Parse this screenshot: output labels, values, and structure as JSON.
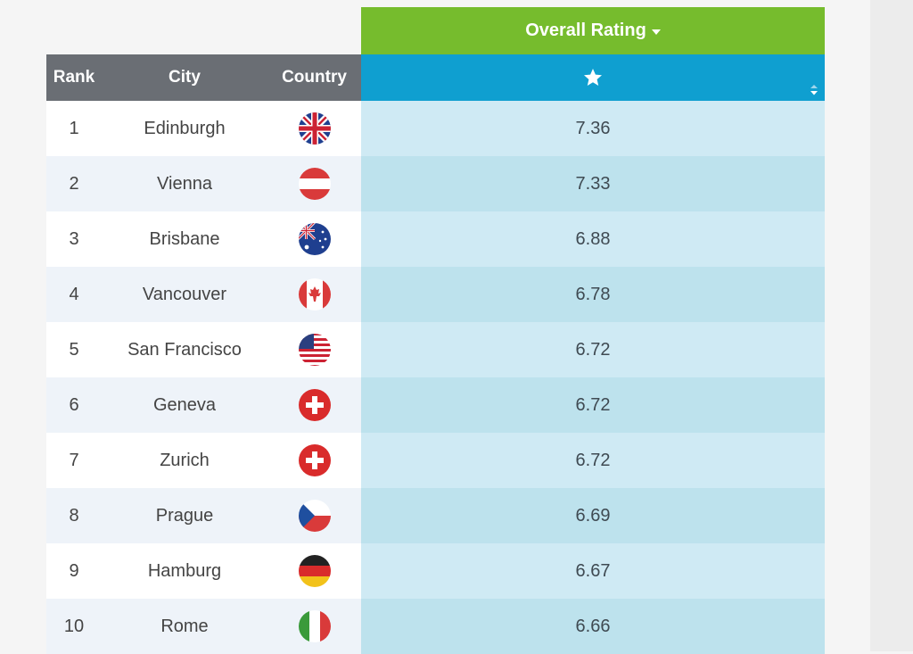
{
  "header": {
    "overall_rating_label": "Overall Rating",
    "columns": {
      "rank": "Rank",
      "city": "City",
      "country": "Country"
    },
    "rating_icon": "star-icon",
    "sort_icon": "sort-icon"
  },
  "colors": {
    "overall_header": "#76bc2d",
    "rating_header": "#0f9fd0",
    "column_header": "#6a6e74",
    "rating_odd": "#cfeaf4",
    "rating_even": "#bde2ed"
  },
  "rows": [
    {
      "rank": "1",
      "city": "Edinburgh",
      "flag": "uk-flag-icon",
      "rating": "7.36"
    },
    {
      "rank": "2",
      "city": "Vienna",
      "flag": "austria-flag-icon",
      "rating": "7.33"
    },
    {
      "rank": "3",
      "city": "Brisbane",
      "flag": "australia-flag-icon",
      "rating": "6.88"
    },
    {
      "rank": "4",
      "city": "Vancouver",
      "flag": "canada-flag-icon",
      "rating": "6.78"
    },
    {
      "rank": "5",
      "city": "San Francisco",
      "flag": "usa-flag-icon",
      "rating": "6.72"
    },
    {
      "rank": "6",
      "city": "Geneva",
      "flag": "switzerland-flag-icon",
      "rating": "6.72"
    },
    {
      "rank": "7",
      "city": "Zurich",
      "flag": "switzerland-flag-icon",
      "rating": "6.72"
    },
    {
      "rank": "8",
      "city": "Prague",
      "flag": "czech-flag-icon",
      "rating": "6.69"
    },
    {
      "rank": "9",
      "city": "Hamburg",
      "flag": "germany-flag-icon",
      "rating": "6.67"
    },
    {
      "rank": "10",
      "city": "Rome",
      "flag": "italy-flag-icon",
      "rating": "6.66"
    }
  ]
}
